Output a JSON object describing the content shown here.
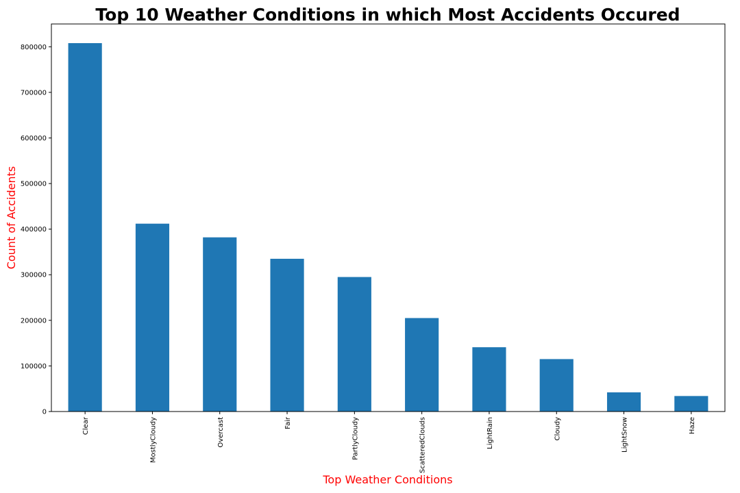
{
  "chart_data": {
    "type": "bar",
    "title": "Top 10 Weather Conditions in which Most Accidents Occured",
    "xlabel": "Top Weather Conditions",
    "ylabel": "Count of Accidents",
    "categories": [
      "Clear",
      "MostlyCloudy",
      "Overcast",
      "Fair",
      "PartlyCloudy",
      "ScatteredClouds",
      "LightRain",
      "Cloudy",
      "LightSnow",
      "Haze"
    ],
    "values": [
      808000,
      412000,
      382000,
      335000,
      295000,
      205000,
      141000,
      115000,
      42000,
      34000
    ],
    "ylim": [
      0,
      850000
    ],
    "yticks": [
      0,
      100000,
      200000,
      300000,
      400000,
      500000,
      600000,
      700000,
      800000
    ],
    "ytick_labels": [
      "0",
      "100000",
      "200000",
      "300000",
      "400000",
      "500000",
      "600000",
      "700000",
      "800000"
    ],
    "grid": false,
    "legend": "none",
    "colors": {
      "bar": "#1f77b4",
      "axis_label": "#ff0000",
      "title": "#000000"
    }
  }
}
